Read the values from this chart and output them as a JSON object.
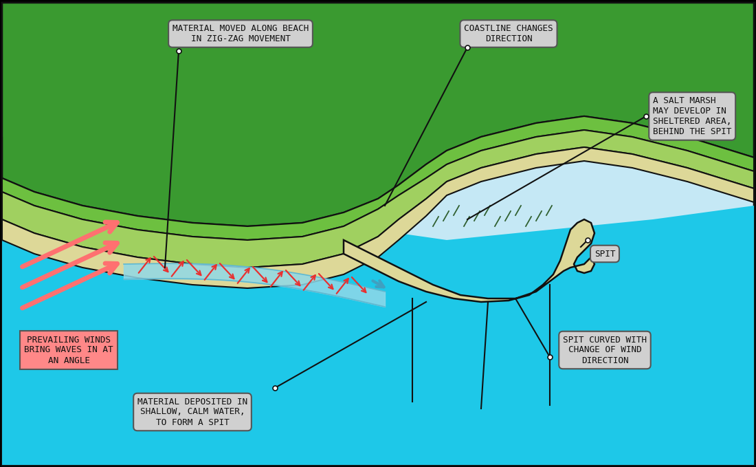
{
  "sky_color": "#c5e8f5",
  "sea_color": "#1ec8e8",
  "land_dark_green": "#3a9a30",
  "land_mid_green": "#6dc040",
  "land_light_green": "#a0d060",
  "sand_color": "#ddd898",
  "sand_light": "#eae8b0",
  "border_color": "#111111",
  "label_bg": "#d0d0d0",
  "wind_bg": "#ff7a7a",
  "red_arrow": "#e83030",
  "pink_arrow": "#ff7070",
  "blue_band": "#90d8e8",
  "salt_hatch": "#306030",
  "labels": {
    "material_moved": "MATERIAL MOVED ALONG BEACH\nIN ZIG-ZAG MOVEMENT",
    "coastline_changes": "COASTLINE CHANGES\nDIRECTION",
    "salt_marsh": "A SALT MARSH\nMAY DEVELOP IN\nSHELTERED AREA,\nBEHIND THE SPIT",
    "prevailing_winds": "PREVAILING WINDS\nBRING WAVES IN AT\nAN ANGLE",
    "material_deposited": "MATERIAL DEPOSITED IN\nSHALLOW, CALM WATER,\nTO FORM A SPIT",
    "spit": "SPIT",
    "spit_curved": "SPIT CURVED WITH\nCHANGE OF WIND\nDIRECTION"
  }
}
